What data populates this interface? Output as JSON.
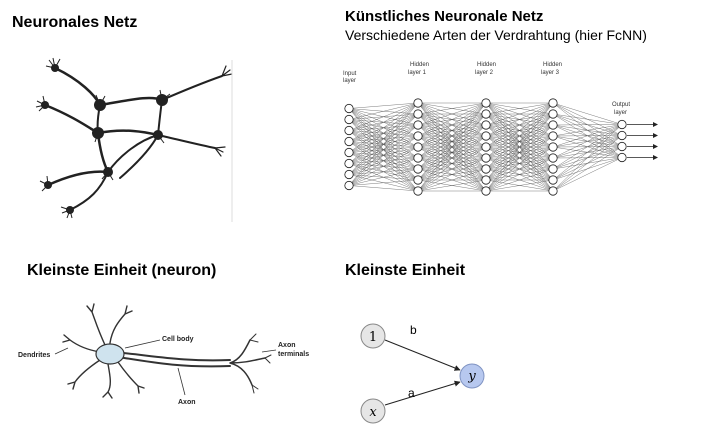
{
  "sections": {
    "neural_net_title": "Neuronales Netz",
    "ann_title": "Künstliches Neuronale Netz",
    "ann_subtitle": "Verschiedene Arten der Verdrahtung (hier FcNN)",
    "neuron_title": "Kleinste Einheit (neuron)",
    "unit_title": "Kleinste Einheit"
  },
  "network": {
    "layers": [
      {
        "label_line1": "Input",
        "label_line2": "layer",
        "nodes": 8
      },
      {
        "label_line1": "Hidden",
        "label_line2": "layer 1",
        "nodes": 9
      },
      {
        "label_line1": "Hidden",
        "label_line2": "layer 2",
        "nodes": 9
      },
      {
        "label_line1": "Hidden",
        "label_line2": "layer 3",
        "nodes": 9
      },
      {
        "label_line1": "Output",
        "label_line2": "layer",
        "nodes": 4
      }
    ]
  },
  "neuron_labels": {
    "cell_body": "Cell body",
    "dendrites": "Dendrites",
    "axon": "Axon",
    "axon_terminals_line1": "Axon",
    "axon_terminals_line2": "terminals"
  },
  "unit_graph": {
    "input_one": "1",
    "input_x": "x",
    "output_y": "y",
    "weight_b": "b",
    "weight_a": "a",
    "input_color": "#e6e6e6",
    "output_color": "#b7c8ef"
  }
}
